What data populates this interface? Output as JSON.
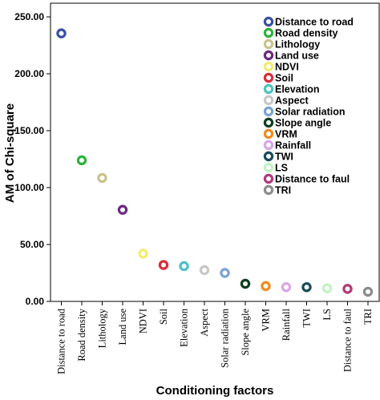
{
  "chart_data": {
    "type": "scatter",
    "xlabel": "Conditioning factors",
    "ylabel": "AM of Chi-square",
    "ylim": [
      0,
      262
    ],
    "yticks": [
      "0.00",
      "50.00",
      "100.00",
      "150.00",
      "200.00",
      "250.00"
    ],
    "ytick_values": [
      0,
      50,
      100,
      150,
      200,
      250
    ],
    "grid": false,
    "legend_position": "top-right",
    "series": [
      {
        "name": "Distance to road",
        "tick": "Distance to road",
        "value": 235.5,
        "color": "#3a4fa3"
      },
      {
        "name": "Road density",
        "tick": "Road density",
        "value": 124,
        "color": "#2eb33a"
      },
      {
        "name": "Lithology",
        "tick": "Lithology",
        "value": 108.5,
        "color": "#c9c38e"
      },
      {
        "name": "Land use",
        "tick": "Land use",
        "value": 80.5,
        "color": "#6b2a80"
      },
      {
        "name": "NDVI",
        "tick": "NDVI",
        "value": 42,
        "color": "#f2ec72"
      },
      {
        "name": "Soil",
        "tick": "Soil",
        "value": 32,
        "color": "#d92e3a"
      },
      {
        "name": "Elevation",
        "tick": "Elevation",
        "value": 31,
        "color": "#4dc2c2"
      },
      {
        "name": "Aspect",
        "tick": "Aspect",
        "value": 27.5,
        "color": "#c8c8c8"
      },
      {
        "name": "Solar radiation",
        "tick": "Solar radiation",
        "value": 25,
        "color": "#7aa3d6"
      },
      {
        "name": "Slope angle",
        "tick": "Slope angle",
        "value": 15.5,
        "color": "#0f3d1c"
      },
      {
        "name": "VRM",
        "tick": "VRM",
        "value": 13.5,
        "color": "#f28a1c"
      },
      {
        "name": "Rainfall",
        "tick": "Rainfall",
        "value": 12.5,
        "color": "#d9a6e6"
      },
      {
        "name": "TWI",
        "tick": "TWI",
        "value": 12.5,
        "color": "#1a4a5c"
      },
      {
        "name": "LS",
        "tick": "LS",
        "value": 11.5,
        "color": "#c2f2c2"
      },
      {
        "name": "Distance to faul",
        "tick": "Distance to faul",
        "value": 11,
        "color": "#b03a7a"
      },
      {
        "name": "TRI",
        "tick": "TRI",
        "value": 8.5,
        "color": "#8c8c8c"
      }
    ]
  }
}
